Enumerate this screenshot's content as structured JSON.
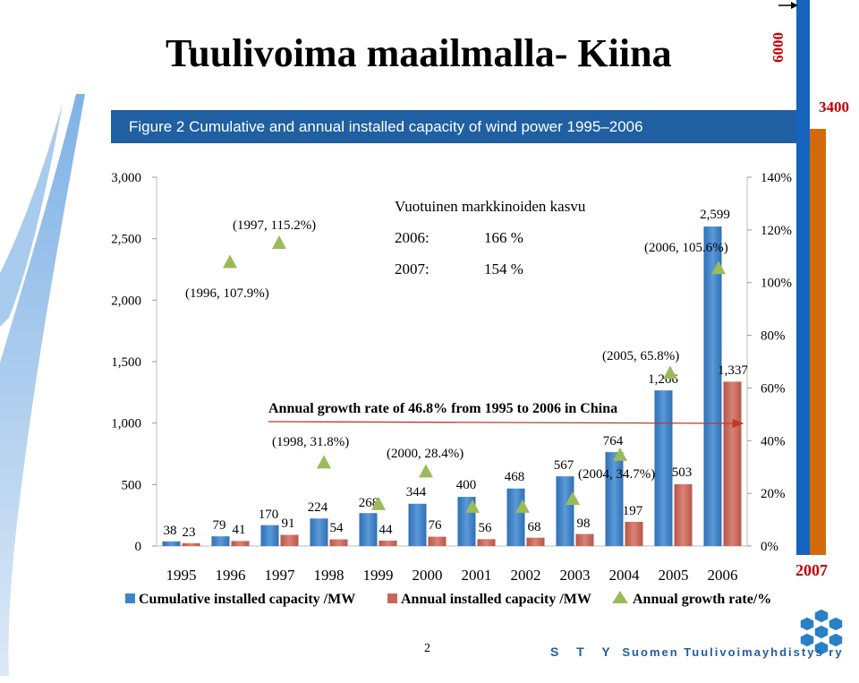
{
  "title": "Tuulivoima maailmalla- Kiina",
  "figure_header": "Figure 2  Cumulative and annual installed capacity of wind power 1995–2006",
  "side_labels": {
    "top_value": "6000",
    "mid_value": "3400",
    "year": "2007"
  },
  "growth_box": {
    "heading": "Vuotuinen markkinoiden kasvu",
    "rows": [
      {
        "year": "2006:",
        "value": "166 %"
      },
      {
        "year": "2007:",
        "value": "154 %"
      }
    ]
  },
  "page_number": "2",
  "logo_text": {
    "sty": "S T Y",
    "name": "Suomen Tuulivoimayhdistys ry"
  },
  "colors": {
    "cumulative": "#3d85c6",
    "annual": "#c8655a",
    "growth": "#9bbb59",
    "header_bg": "#1f5fa2",
    "accent_red": "#c00000",
    "orange": "#d36b0d",
    "blue_bar": "#1565c0"
  },
  "chart_data": {
    "type": "bar",
    "categories": [
      "1995",
      "1996",
      "1997",
      "1998",
      "1999",
      "2000",
      "2001",
      "2002",
      "2003",
      "2004",
      "2005",
      "2006"
    ],
    "series": [
      {
        "name": "Cumulative installed capacity /MW",
        "values": [
          38,
          79,
          170,
          224,
          268,
          344,
          400,
          468,
          567,
          764,
          1266,
          2599
        ],
        "labels": [
          "38",
          "79",
          "170",
          "224",
          "268",
          "344",
          "400",
          "468",
          "567",
          "764",
          "1,266",
          "2,599"
        ]
      },
      {
        "name": "Annual installed capacity /MW",
        "values": [
          23,
          41,
          91,
          54,
          44,
          76,
          56,
          68,
          98,
          197,
          503,
          1337
        ],
        "labels": [
          "23",
          "41",
          "91",
          "54",
          "44",
          "76",
          "56",
          "68",
          "98",
          "197",
          "503",
          "1,337"
        ]
      },
      {
        "name": "Annual growth rate/%",
        "values": [
          null,
          107.9,
          115.2,
          31.8,
          16,
          28.4,
          15,
          15,
          18,
          34.7,
          65.8,
          105.6
        ]
      }
    ],
    "y_left": {
      "min": 0,
      "max": 3000,
      "ticks": [
        "0",
        "500",
        "1,000",
        "1,500",
        "2,000",
        "2,500",
        "3,000"
      ]
    },
    "y_right": {
      "min": 0,
      "max": 140,
      "ticks": [
        "0%",
        "20%",
        "40%",
        "60%",
        "80%",
        "100%",
        "120%",
        "140%"
      ]
    },
    "annotations": [
      {
        "text": "(1996, 107.9%)",
        "year": "1996"
      },
      {
        "text": "(1997, 115.2%)",
        "year": "1997"
      },
      {
        "text": "(1998, 31.8%)",
        "year": "1998"
      },
      {
        "text": "(2000, 28.4%)",
        "year": "2000"
      },
      {
        "text": "(2004, 34.7%)",
        "year": "2004"
      },
      {
        "text": "(2005, 65.8%)",
        "year": "2005"
      },
      {
        "text": "(2006, 105.6%)",
        "year": "2006"
      }
    ],
    "trend_text": "Annual growth rate of 46.8% from 1995 to 2006 in China",
    "legend_position": "bottom"
  }
}
